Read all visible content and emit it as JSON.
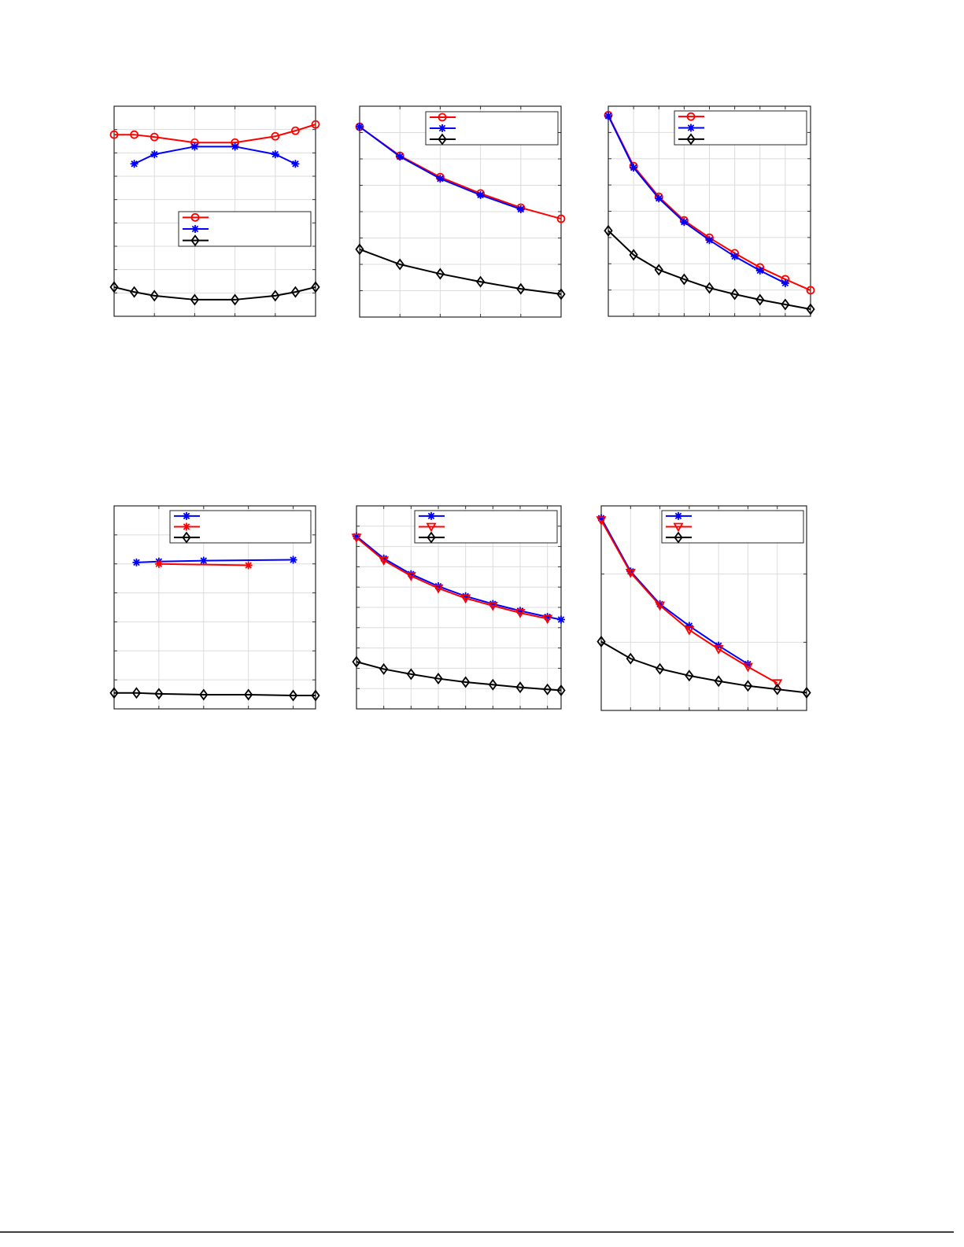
{
  "chart_data": [
    {
      "type": "line",
      "xlim": [
        0,
        5
      ],
      "ylim": [
        0,
        9
      ],
      "xgrid": 1,
      "ygrid": 1,
      "grid": true,
      "legend": "center-right",
      "series": [
        {
          "color": "#ff0000",
          "marker": "circle",
          "x": [
            0,
            0.5,
            1,
            2,
            3,
            4,
            4.5,
            5
          ],
          "y": [
            7.78,
            7.78,
            7.68,
            7.44,
            7.44,
            7.71,
            7.95,
            8.22
          ]
        },
        {
          "color": "#0000ff",
          "marker": "asterisk",
          "x": [
            0.5,
            1,
            2,
            3,
            4,
            4.5
          ],
          "y": [
            6.53,
            6.94,
            7.27,
            7.27,
            6.94,
            6.53
          ]
        },
        {
          "color": "#000000",
          "marker": "diamond",
          "x": [
            0,
            0.5,
            1,
            2,
            3,
            4,
            4.5,
            5
          ],
          "y": [
            1.25,
            1.04,
            0.88,
            0.71,
            0.71,
            0.88,
            1.04,
            1.25
          ]
        }
      ]
    },
    {
      "type": "line",
      "xlim": [
        0,
        5
      ],
      "ylim": [
        0,
        8
      ],
      "xgrid": 1,
      "ygrid": 1,
      "grid": true,
      "legend": "top-right",
      "series": [
        {
          "color": "#ff0000",
          "marker": "circle",
          "x": [
            0,
            1,
            2,
            3,
            4,
            5
          ],
          "y": [
            7.22,
            6.12,
            5.31,
            4.69,
            4.15,
            3.73
          ]
        },
        {
          "color": "#0000ff",
          "marker": "asterisk",
          "x": [
            0,
            1,
            2,
            3,
            4
          ],
          "y": [
            7.22,
            6.09,
            5.25,
            4.63,
            4.09
          ]
        },
        {
          "color": "#000000",
          "marker": "diamond",
          "x": [
            0,
            1,
            2,
            3,
            4,
            5
          ],
          "y": [
            2.57,
            2.0,
            1.64,
            1.34,
            1.07,
            0.87
          ]
        }
      ]
    },
    {
      "type": "line",
      "xlim": [
        0,
        8
      ],
      "ylim": [
        0,
        8
      ],
      "xgrid": 1,
      "ygrid": 1,
      "grid": true,
      "legend": "top-right",
      "series": [
        {
          "color": "#ff0000",
          "marker": "circle",
          "x": [
            0,
            1,
            2,
            3,
            4,
            5,
            6,
            7,
            8
          ],
          "y": [
            7.66,
            5.72,
            4.55,
            3.65,
            2.99,
            2.4,
            1.86,
            1.41,
            0.99
          ]
        },
        {
          "color": "#0000ff",
          "marker": "asterisk",
          "x": [
            0,
            1,
            2,
            3,
            4,
            5,
            6,
            7
          ],
          "y": [
            7.63,
            5.66,
            4.49,
            3.59,
            2.9,
            2.28,
            1.74,
            1.26
          ]
        },
        {
          "color": "#000000",
          "marker": "diamond",
          "x": [
            0,
            1,
            2,
            3,
            4,
            5,
            6,
            7,
            8
          ],
          "y": [
            3.26,
            2.34,
            1.77,
            1.41,
            1.08,
            0.84,
            0.63,
            0.45,
            0.27
          ]
        }
      ]
    },
    {
      "type": "line",
      "xlim": [
        0,
        4.5
      ],
      "ylim": [
        0,
        7
      ],
      "xgrid": 1,
      "ygrid": 1,
      "grid": true,
      "legend": "top-right",
      "series": [
        {
          "color": "#0000ff",
          "marker": "asterisk",
          "x": [
            0.5,
            1,
            2,
            4
          ],
          "y": [
            5.05,
            5.08,
            5.11,
            5.14
          ]
        },
        {
          "color": "#ff0000",
          "marker": "asterisk",
          "x": [
            1,
            3
          ],
          "y": [
            5.0,
            4.95
          ]
        },
        {
          "color": "#000000",
          "marker": "diamond",
          "x": [
            0,
            0.5,
            1,
            2,
            3,
            4,
            4.5
          ],
          "y": [
            0.55,
            0.55,
            0.52,
            0.49,
            0.49,
            0.46,
            0.46
          ]
        }
      ]
    },
    {
      "type": "line",
      "xlim": [
        0,
        7.5
      ],
      "ylim": [
        0,
        10
      ],
      "xgrid": 1,
      "ygrid": 1,
      "grid": true,
      "legend": "top-right",
      "series": [
        {
          "color": "#0000ff",
          "marker": "asterisk",
          "x": [
            0,
            1,
            2,
            3,
            4,
            5,
            6,
            7,
            7.5
          ],
          "y": [
            8.5,
            7.41,
            6.64,
            6.04,
            5.55,
            5.17,
            4.83,
            4.53,
            4.4
          ]
        },
        {
          "color": "#ff0000",
          "marker": "triangle-down",
          "x": [
            0,
            1,
            2,
            3,
            4,
            5,
            6,
            7
          ],
          "y": [
            8.44,
            7.32,
            6.55,
            5.94,
            5.45,
            5.08,
            4.73,
            4.44
          ]
        },
        {
          "color": "#000000",
          "marker": "diamond",
          "x": [
            0,
            1,
            2,
            3,
            4,
            5,
            6,
            7,
            7.5
          ],
          "y": [
            2.32,
            1.96,
            1.71,
            1.49,
            1.32,
            1.19,
            1.06,
            0.96,
            0.91
          ]
        }
      ]
    },
    {
      "type": "line",
      "xlim": [
        0,
        7
      ],
      "ylim": [
        0,
        3
      ],
      "xgrid": 1,
      "ygrid": 1,
      "grid": true,
      "legend": "top-right",
      "series": [
        {
          "color": "#0000ff",
          "marker": "asterisk",
          "x": [
            0,
            1,
            2,
            3,
            4,
            5
          ],
          "y": [
            2.82,
            2.04,
            1.56,
            1.24,
            0.95,
            0.68
          ]
        },
        {
          "color": "#ff0000",
          "marker": "triangle-down",
          "x": [
            0,
            1,
            2,
            3,
            4,
            5,
            6
          ],
          "y": [
            2.79,
            2.02,
            1.54,
            1.18,
            0.9,
            0.64,
            0.4
          ]
        },
        {
          "color": "#000000",
          "marker": "diamond",
          "x": [
            0,
            1,
            2,
            3,
            4,
            5,
            6,
            7
          ],
          "y": [
            1.01,
            0.76,
            0.61,
            0.51,
            0.43,
            0.36,
            0.31,
            0.26
          ]
        }
      ]
    }
  ]
}
